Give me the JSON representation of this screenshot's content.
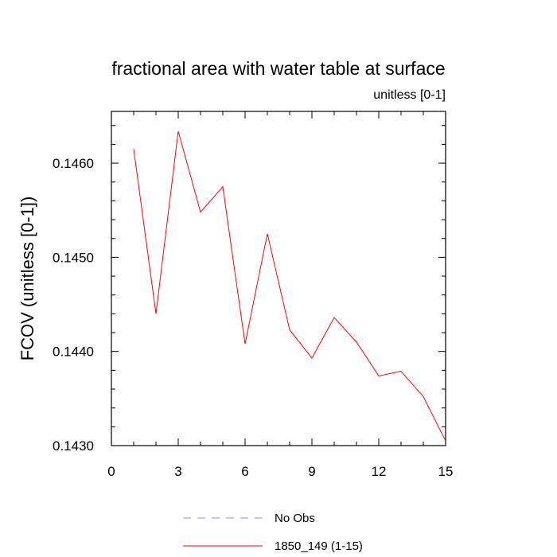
{
  "chart_data": {
    "type": "line",
    "title": "fractional area with water table at surface",
    "subtitle": "unitless [0-1]",
    "xlabel": "",
    "ylabel": "FCOV  (unitless [0-1])",
    "xlim": [
      0,
      15
    ],
    "ylim": [
      0.143,
      0.14655
    ],
    "x_ticks": [
      0,
      3,
      6,
      9,
      12,
      15
    ],
    "y_ticks": [
      0.143,
      0.144,
      0.145,
      0.146
    ],
    "y_tick_labels": [
      "0.1430",
      "0.1440",
      "0.1450",
      "0.1460"
    ],
    "grid": false,
    "legend_position": "bottom",
    "series": [
      {
        "name": "No Obs",
        "color": "#8c8cff",
        "dash": "dashed",
        "x": [],
        "values": []
      },
      {
        "name": "1850_149 (1-15)",
        "color": "#ff0000",
        "dash": "solid",
        "x": [
          1,
          2,
          3,
          4,
          5,
          6,
          7,
          8,
          9,
          10,
          11,
          12,
          13,
          14,
          15
        ],
        "values": [
          0.14615,
          0.1444,
          0.14634,
          0.14548,
          0.14575,
          0.14408,
          0.14525,
          0.14423,
          0.14393,
          0.14436,
          0.1441,
          0.14374,
          0.14379,
          0.14352,
          0.14305
        ]
      }
    ]
  }
}
